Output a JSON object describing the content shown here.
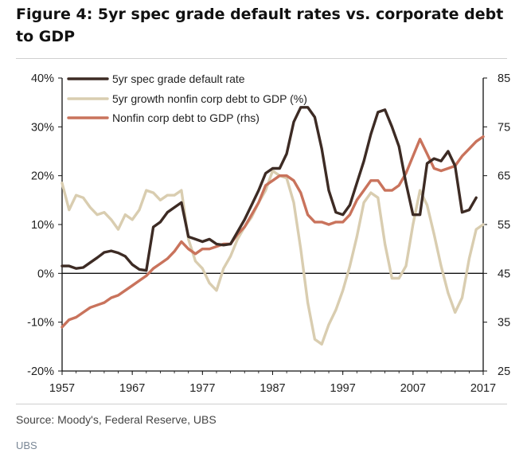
{
  "title": "Figure 4: 5yr spec grade default rates vs. corporate debt to GDP",
  "source": "Source:  Moody's, Federal Reserve, UBS",
  "brand": "UBS",
  "chart_data": {
    "type": "line",
    "x_ticks": [
      "1957",
      "1967",
      "1977",
      "1987",
      "1997",
      "2007",
      "2017"
    ],
    "y_left_ticks": [
      "40%",
      "30%",
      "20%",
      "10%",
      "0%",
      "-10%",
      "-20%"
    ],
    "y_right_ticks": [
      "85",
      "75",
      "65",
      "55",
      "45",
      "35",
      "25"
    ],
    "ylim_left": [
      -20,
      40
    ],
    "ylim_right": [
      25,
      85
    ],
    "xlim": [
      1957,
      2017
    ],
    "grid": false,
    "legend_position": "top-left",
    "series": [
      {
        "name": "5yr spec grade default rate",
        "axis": "left",
        "color": "#3d2b24",
        "points": [
          [
            1957,
            1.5
          ],
          [
            1958,
            1.5
          ],
          [
            1959,
            1.0
          ],
          [
            1960,
            1.2
          ],
          [
            1961,
            2.2
          ],
          [
            1962,
            3.2
          ],
          [
            1963,
            4.3
          ],
          [
            1964,
            4.6
          ],
          [
            1965,
            4.2
          ],
          [
            1966,
            3.5
          ],
          [
            1967,
            1.8
          ],
          [
            1968,
            0.8
          ],
          [
            1969,
            0.6
          ],
          [
            1970,
            9.5
          ],
          [
            1971,
            10.5
          ],
          [
            1972,
            12.5
          ],
          [
            1973,
            13.5
          ],
          [
            1974,
            14.5
          ],
          [
            1975,
            7.5
          ],
          [
            1976,
            7.0
          ],
          [
            1977,
            6.5
          ],
          [
            1978,
            7.0
          ],
          [
            1979,
            6.0
          ],
          [
            1980,
            5.8
          ],
          [
            1981,
            6.0
          ],
          [
            1982,
            8.5
          ],
          [
            1983,
            11.0
          ],
          [
            1984,
            14.0
          ],
          [
            1985,
            17.0
          ],
          [
            1986,
            20.5
          ],
          [
            1987,
            21.5
          ],
          [
            1988,
            21.5
          ],
          [
            1989,
            24.5
          ],
          [
            1990,
            31.0
          ],
          [
            1991,
            34.0
          ],
          [
            1992,
            34.0
          ],
          [
            1993,
            32.0
          ],
          [
            1994,
            25.5
          ],
          [
            1995,
            17.0
          ],
          [
            1996,
            12.5
          ],
          [
            1997,
            12.0
          ],
          [
            1998,
            14.0
          ],
          [
            1999,
            18.5
          ],
          [
            2000,
            23.0
          ],
          [
            2001,
            28.5
          ],
          [
            2002,
            33.0
          ],
          [
            2003,
            33.5
          ],
          [
            2004,
            30.0
          ],
          [
            2005,
            26.0
          ],
          [
            2006,
            18.5
          ],
          [
            2007,
            12.0
          ],
          [
            2008,
            12.0
          ],
          [
            2009,
            22.5
          ],
          [
            2010,
            23.5
          ],
          [
            2011,
            23.0
          ],
          [
            2012,
            25.0
          ],
          [
            2013,
            22.0
          ],
          [
            2014,
            12.5
          ],
          [
            2015,
            13.0
          ],
          [
            2016,
            15.5
          ]
        ]
      },
      {
        "name": "5yr growth nonfin corp debt to GDP (%)",
        "axis": "left",
        "color": "#d9cdb0",
        "points": [
          [
            1957,
            18.5
          ],
          [
            1958,
            13.0
          ],
          [
            1959,
            16.0
          ],
          [
            1960,
            15.5
          ],
          [
            1961,
            13.5
          ],
          [
            1962,
            12.0
          ],
          [
            1963,
            12.5
          ],
          [
            1964,
            11.0
          ],
          [
            1965,
            9.0
          ],
          [
            1966,
            12.0
          ],
          [
            1967,
            11.0
          ],
          [
            1968,
            13.0
          ],
          [
            1969,
            17.0
          ],
          [
            1970,
            16.5
          ],
          [
            1971,
            15.0
          ],
          [
            1972,
            16.0
          ],
          [
            1973,
            16.0
          ],
          [
            1974,
            17.0
          ],
          [
            1975,
            7.0
          ],
          [
            1976,
            2.5
          ],
          [
            1977,
            1.0
          ],
          [
            1978,
            -2.0
          ],
          [
            1979,
            -3.5
          ],
          [
            1980,
            1.0
          ],
          [
            1981,
            3.5
          ],
          [
            1982,
            7.0
          ],
          [
            1983,
            9.5
          ],
          [
            1984,
            11.5
          ],
          [
            1985,
            14.5
          ],
          [
            1986,
            17.0
          ],
          [
            1987,
            21.0
          ],
          [
            1988,
            20.0
          ],
          [
            1989,
            19.5
          ],
          [
            1990,
            14.5
          ],
          [
            1991,
            5.0
          ],
          [
            1992,
            -6.0
          ],
          [
            1993,
            -13.5
          ],
          [
            1994,
            -14.5
          ],
          [
            1995,
            -10.5
          ],
          [
            1996,
            -7.5
          ],
          [
            1997,
            -3.5
          ],
          [
            1998,
            1.5
          ],
          [
            1999,
            7.5
          ],
          [
            2000,
            14.5
          ],
          [
            2001,
            16.5
          ],
          [
            2002,
            15.5
          ],
          [
            2003,
            6.0
          ],
          [
            2004,
            -1.0
          ],
          [
            2005,
            -1.0
          ],
          [
            2006,
            1.5
          ],
          [
            2007,
            10.0
          ],
          [
            2008,
            17.0
          ],
          [
            2009,
            14.0
          ],
          [
            2010,
            8.0
          ],
          [
            2011,
            1.5
          ],
          [
            2012,
            -4.0
          ],
          [
            2013,
            -8.0
          ],
          [
            2014,
            -5.0
          ],
          [
            2015,
            3.0
          ],
          [
            2016,
            9.0
          ],
          [
            2017,
            10.0
          ]
        ]
      },
      {
        "name": "Nonfin corp debt to GDP (rhs)",
        "axis": "right",
        "color": "#c9735c",
        "points": [
          [
            1957,
            34
          ],
          [
            1958,
            35.5
          ],
          [
            1959,
            36
          ],
          [
            1960,
            37
          ],
          [
            1961,
            38
          ],
          [
            1962,
            38.5
          ],
          [
            1963,
            39
          ],
          [
            1964,
            40
          ],
          [
            1965,
            40.5
          ],
          [
            1966,
            41.5
          ],
          [
            1967,
            42.5
          ],
          [
            1968,
            43.5
          ],
          [
            1969,
            44.5
          ],
          [
            1970,
            46
          ],
          [
            1971,
            47
          ],
          [
            1972,
            48
          ],
          [
            1973,
            49.5
          ],
          [
            1974,
            51.5
          ],
          [
            1975,
            50
          ],
          [
            1976,
            49
          ],
          [
            1977,
            50
          ],
          [
            1978,
            50
          ],
          [
            1979,
            50.5
          ],
          [
            1980,
            51
          ],
          [
            1981,
            51
          ],
          [
            1982,
            53
          ],
          [
            1983,
            54.5
          ],
          [
            1984,
            57
          ],
          [
            1985,
            59.5
          ],
          [
            1986,
            63
          ],
          [
            1987,
            64
          ],
          [
            1988,
            65
          ],
          [
            1989,
            65
          ],
          [
            1990,
            64
          ],
          [
            1991,
            61.5
          ],
          [
            1992,
            57
          ],
          [
            1993,
            55.5
          ],
          [
            1994,
            55.5
          ],
          [
            1995,
            55
          ],
          [
            1996,
            55.5
          ],
          [
            1997,
            55.5
          ],
          [
            1998,
            57
          ],
          [
            1999,
            60
          ],
          [
            2000,
            62
          ],
          [
            2001,
            64
          ],
          [
            2002,
            64
          ],
          [
            2003,
            62
          ],
          [
            2004,
            62
          ],
          [
            2005,
            63
          ],
          [
            2006,
            65.5
          ],
          [
            2007,
            69
          ],
          [
            2008,
            72.5
          ],
          [
            2009,
            69.5
          ],
          [
            2010,
            66.5
          ],
          [
            2011,
            66
          ],
          [
            2012,
            66.5
          ],
          [
            2013,
            67
          ],
          [
            2014,
            69
          ],
          [
            2015,
            70.5
          ],
          [
            2016,
            72
          ],
          [
            2017,
            73
          ]
        ]
      }
    ]
  }
}
